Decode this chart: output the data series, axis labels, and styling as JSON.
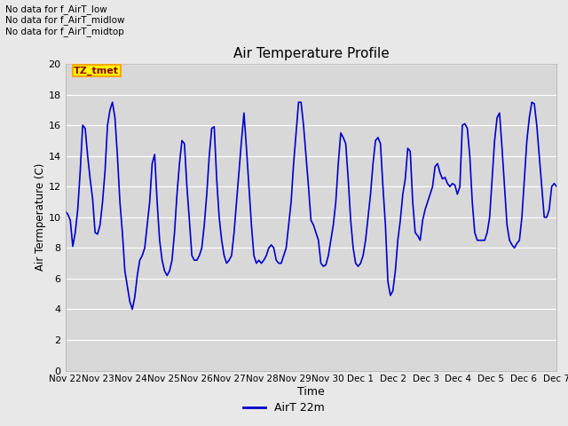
{
  "title": "Air Temperature Profile",
  "xlabel": "Time",
  "ylabel": "Air Termperature (C)",
  "ylim": [
    0,
    20
  ],
  "yticks": [
    0,
    2,
    4,
    6,
    8,
    10,
    12,
    14,
    16,
    18,
    20
  ],
  "line_color": "#0000CC",
  "line_width": 1.2,
  "fig_bg_color": "#E8E8E8",
  "plot_bg_color": "#D8D8D8",
  "legend_label": "AirT 22m",
  "annotation_lines": [
    "No data for f_AirT_low",
    "No data for f_AirT_midlow",
    "No data for f_AirT_midtop"
  ],
  "tz_label": "TZ_tmet",
  "x_tick_labels": [
    "Nov 22",
    "Nov 23",
    "Nov 24",
    "Nov 25",
    "Nov 26",
    "Nov 27",
    "Nov 28",
    "Nov 29",
    "Nov 30",
    "Dec 1",
    "Dec 2",
    "Dec 3",
    "Dec 4",
    "Dec 5",
    "Dec 6",
    "Dec 7"
  ],
  "temperatures": [
    10.4,
    10.2,
    9.8,
    8.1,
    9.0,
    10.5,
    13.0,
    16.0,
    15.8,
    14.0,
    12.5,
    11.2,
    9.0,
    8.9,
    9.5,
    11.0,
    13.0,
    16.0,
    17.0,
    17.5,
    16.5,
    14.0,
    11.0,
    9.0,
    6.5,
    5.5,
    4.5,
    4.0,
    4.8,
    6.2,
    7.2,
    7.5,
    8.0,
    9.5,
    11.0,
    13.5,
    14.1,
    11.0,
    8.5,
    7.2,
    6.5,
    6.2,
    6.5,
    7.2,
    9.0,
    11.5,
    13.5,
    15.0,
    14.8,
    12.0,
    9.8,
    7.5,
    7.2,
    7.2,
    7.5,
    8.0,
    9.5,
    11.5,
    14.0,
    15.8,
    15.9,
    12.5,
    10.0,
    8.5,
    7.5,
    7.0,
    7.2,
    7.5,
    9.0,
    11.0,
    13.0,
    15.0,
    16.8,
    14.5,
    12.0,
    9.5,
    7.5,
    7.0,
    7.2,
    7.0,
    7.2,
    7.5,
    8.0,
    8.2,
    8.0,
    7.2,
    7.0,
    7.0,
    7.5,
    8.0,
    9.5,
    11.0,
    13.5,
    15.5,
    17.5,
    17.5,
    16.0,
    14.0,
    12.0,
    9.8,
    9.5,
    9.0,
    8.5,
    7.0,
    6.8,
    6.9,
    7.5,
    8.5,
    9.5,
    11.0,
    13.5,
    15.5,
    15.2,
    14.8,
    12.5,
    9.8,
    8.0,
    7.0,
    6.8,
    7.0,
    7.5,
    8.5,
    10.0,
    11.5,
    13.5,
    15.0,
    15.2,
    14.8,
    12.0,
    9.5,
    5.8,
    4.9,
    5.2,
    6.5,
    8.5,
    9.8,
    11.5,
    12.5,
    14.5,
    14.3,
    11.0,
    9.0,
    8.8,
    8.5,
    9.8,
    10.5,
    11.0,
    11.5,
    12.0,
    13.3,
    13.5,
    12.9,
    12.5,
    12.6,
    12.2,
    12.0,
    12.2,
    12.1,
    11.5,
    12.0,
    16.0,
    16.1,
    15.8,
    14.0,
    11.0,
    9.0,
    8.5,
    8.5,
    8.5,
    8.5,
    9.0,
    10.0,
    12.5,
    15.0,
    16.5,
    16.8,
    14.5,
    12.0,
    9.5,
    8.5,
    8.2,
    8.0,
    8.3,
    8.5,
    10.0,
    12.5,
    15.0,
    16.5,
    17.5,
    17.4,
    16.0,
    14.0,
    12.0,
    10.0,
    10.0,
    10.5,
    12.0,
    12.2,
    12.0
  ]
}
